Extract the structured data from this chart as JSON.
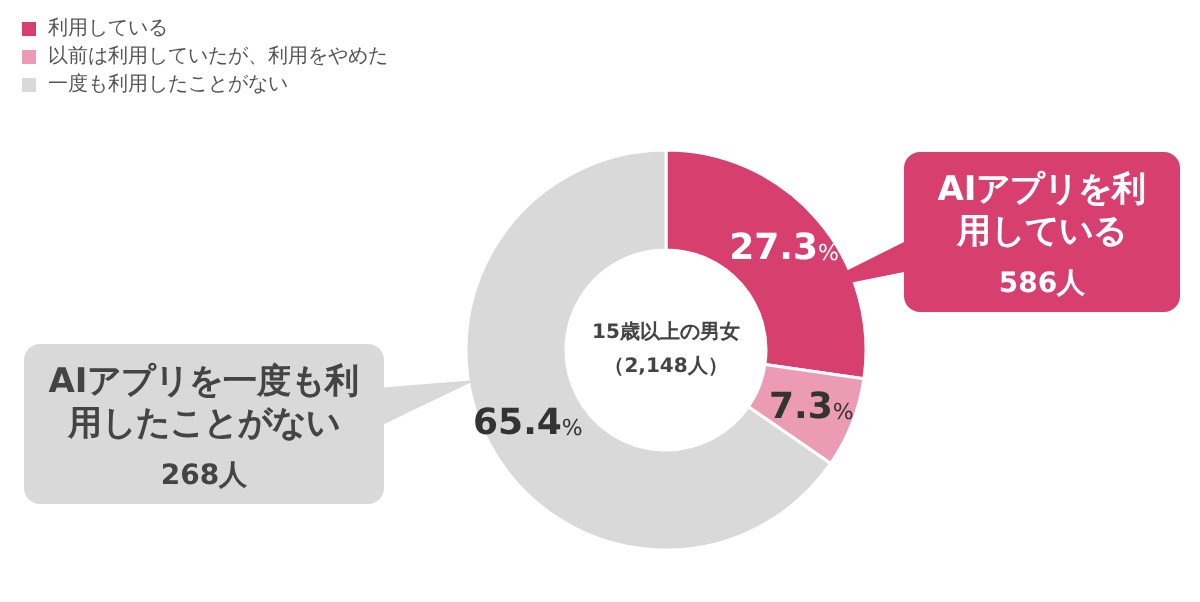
{
  "chart_data": {
    "type": "donut",
    "categories": [
      "利用している",
      "以前は利用していたが、利用をやめた",
      "一度も利用したことがない"
    ],
    "values": [
      27.3,
      7.3,
      65.4
    ],
    "colors": [
      "#d63f6e",
      "#ec9bb4",
      "#d9d9d9"
    ],
    "value_labels": [
      "27.3%",
      "7.3%",
      "65.4%"
    ],
    "legend": "top left",
    "annotations": [
      "15歳以上の男女（2,148人）",
      "AIアプリを利用している",
      "586人",
      "AIアプリを一度も利用したことがない",
      "268人"
    ]
  }
}
